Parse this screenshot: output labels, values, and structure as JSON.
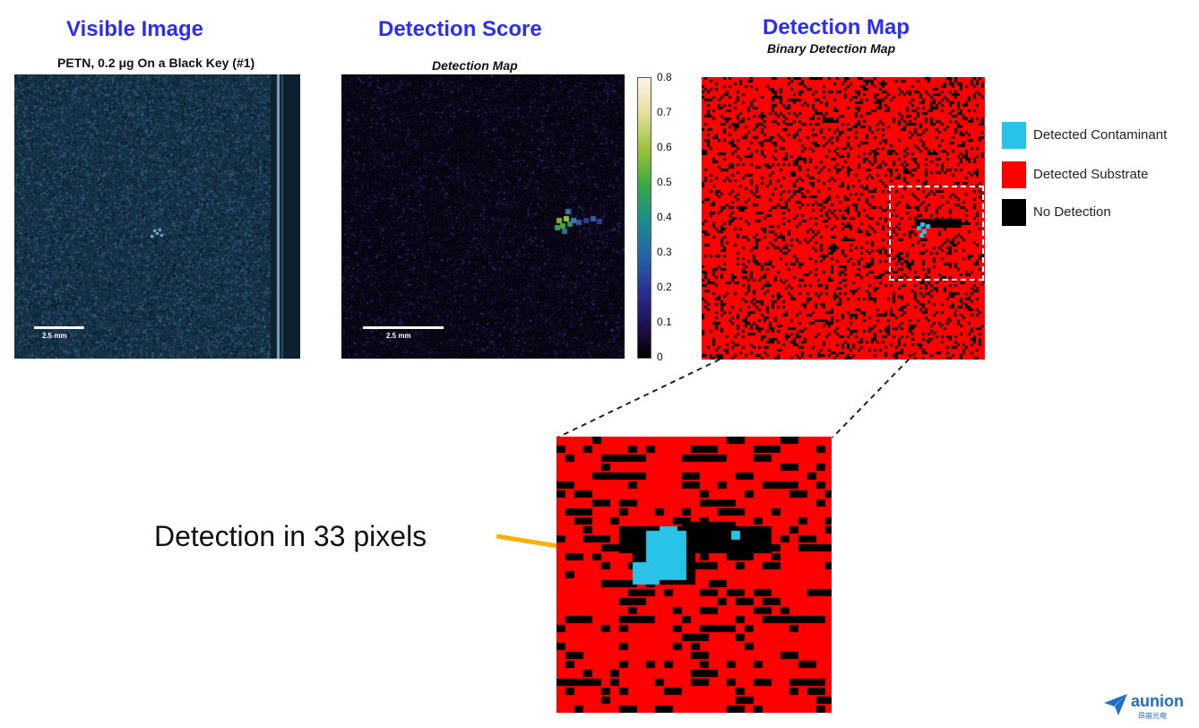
{
  "panels": {
    "visible": {
      "title": "Visible Image",
      "subtitle": "PETN, 0.2 μg On a Black Key (#1)",
      "scalebar": "2.5 mm"
    },
    "score": {
      "title": "Detection Score",
      "subtitle": "Detection Map",
      "scalebar": "2.5 mm",
      "colorbar_ticks": [
        "0.8",
        "0.7",
        "0.6",
        "0.5",
        "0.4",
        "0.3",
        "0.2",
        "0.1",
        "0"
      ]
    },
    "map": {
      "title": "Detection Map",
      "subtitle": "Binary Detection Map"
    }
  },
  "legend": [
    {
      "label": "Detected Contaminant",
      "color": "#29c3ea"
    },
    {
      "label": "Detected Substrate",
      "color": "#ff0000"
    },
    {
      "label": "No Detection",
      "color": "#000000"
    }
  ],
  "callout": "Detection in 33 pixels",
  "logo": {
    "name": "aunion",
    "sub": "昂崩光电"
  },
  "colors": {
    "title": "#2a2ef0",
    "substrate": "#ff0000",
    "contaminant": "#29c3ea",
    "no_detection": "#000000",
    "arrow": "#f5b30a"
  }
}
